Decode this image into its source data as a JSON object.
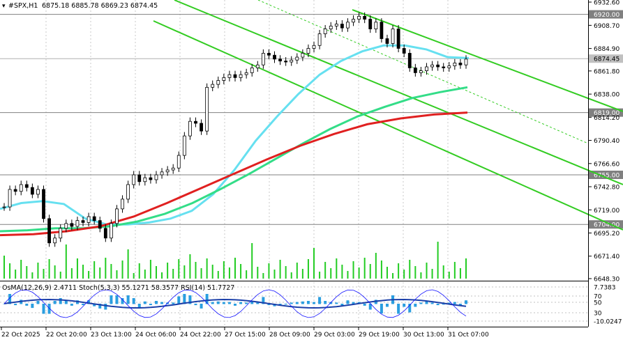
{
  "header": {
    "symbol": "#SPX,H1",
    "ohlc": "6875.18 6885.78 6869.23 6874.45",
    "indicator_label": "OsMA(12,26,9) 2.4711 Stoch(5,3,3) 55.1271 58.3577 RSI(14) 51.7727"
  },
  "colors": {
    "up_candle": "#000000",
    "ma_fast": "#66e0f0",
    "ma_mid": "#33dd88",
    "ma_slow": "#e02020",
    "channel": "#33cc22",
    "volume": "#22cc22",
    "osma": "#2a9ee0",
    "macd_line": "#1b3fa8",
    "stoch": "#1010ff",
    "price_tag_bg": "#808080",
    "current_tag_bg": "#c0c0c0"
  },
  "chart_data": {
    "type": "line",
    "title": "#SPX,H1",
    "y_ticks": [
      "6932.60",
      "6908.70",
      "6884.90",
      "6861.80",
      "6838.00",
      "6814.20",
      "6790.40",
      "6766.60",
      "6742.80",
      "6719.00",
      "6695.20",
      "6671.40",
      "6648.30"
    ],
    "y_range": [
      6648.3,
      6932.6
    ],
    "highlighted_levels": [
      "6920.00",
      "6819.00",
      "6755.00",
      "6704.00"
    ],
    "current_price": "6874.45",
    "x_ticks": [
      "22 Oct 2025",
      "22 Oct 20:00",
      "23 Oct 13:00",
      "24 Oct 06:00",
      "24 Oct 22:00",
      "27 Oct 15:00",
      "28 Oct 09:00",
      "29 Oct 03:00",
      "29 Oct 19:00",
      "30 Oct 13:00",
      "31 Oct 07:00"
    ],
    "indicator_ticks": [
      "7.7383",
      "70",
      "50",
      "30",
      "-10.0247"
    ],
    "series": [
      {
        "name": "",
        "color": "#000000",
        "values": [
          6722,
          6740,
          6738,
          6745,
          6742,
          6735,
          6740,
          6710,
          6685,
          6690,
          6700,
          6705,
          6702,
          6708,
          6706,
          6712,
          6708,
          6700,
          6690,
          6705,
          6720,
          6730,
          6745,
          6755,
          6748,
          6752,
          6750,
          6755,
          6758,
          6760,
          6762,
          6775,
          6795,
          6810,
          6808,
          6800,
          6845,
          6848,
          6852,
          6855,
          6858,
          6855,
          6858,
          6860,
          6865,
          6868,
          6880,
          6878,
          6874,
          6872,
          6871,
          6873,
          6876,
          6880,
          6885,
          6888,
          6900,
          6905,
          6908,
          6910,
          6906,
          6912,
          6915,
          6918,
          6915,
          6905,
          6912,
          6895,
          6890,
          6905,
          6885,
          6880,
          6865,
          6860,
          6862,
          6866,
          6868,
          6866,
          6865,
          6867,
          6870,
          6868,
          6874
        ]
      },
      {
        "name": "",
        "color": "#66e0f0",
        "values": [
          6720,
          6726,
          6728,
          6725,
          6710,
          6704,
          6704,
          6706,
          6710,
          6718,
          6735,
          6760,
          6790,
          6815,
          6838,
          6858,
          6872,
          6882,
          6888,
          6888,
          6884,
          6876,
          6875
        ]
      },
      {
        "name": "",
        "color": "#33dd88",
        "values": [
          6697,
          6698,
          6700,
          6700,
          6702,
          6707,
          6715,
          6726,
          6740,
          6755,
          6771,
          6787,
          6802,
          6815,
          6825,
          6834,
          6840,
          6845
        ]
      },
      {
        "name": "",
        "color": "#e02020",
        "values": [
          6693,
          6694,
          6697,
          6702,
          6712,
          6726,
          6741,
          6756,
          6771,
          6785,
          6797,
          6807,
          6813,
          6817,
          6819
        ]
      }
    ]
  }
}
